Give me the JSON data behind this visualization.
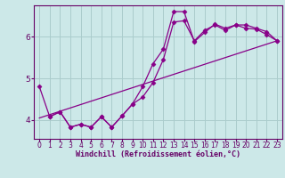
{
  "xlabel": "Windchill (Refroidissement éolien,°C)",
  "bg_color": "#cce8e8",
  "grid_color": "#aacccc",
  "line_color": "#880088",
  "axis_color": "#660066",
  "marker": "D",
  "markersize": 2.5,
  "linewidth": 0.9,
  "xlim": [
    -0.5,
    23.5
  ],
  "ylim": [
    3.55,
    6.75
  ],
  "yticks": [
    4,
    5,
    6
  ],
  "xticks": [
    0,
    1,
    2,
    3,
    4,
    5,
    6,
    7,
    8,
    9,
    10,
    11,
    12,
    13,
    14,
    15,
    16,
    17,
    18,
    19,
    20,
    21,
    22,
    23
  ],
  "series": [
    {
      "x": [
        0,
        1,
        2,
        3,
        4,
        5,
        6,
        7,
        8,
        9,
        10,
        11,
        12,
        13,
        14,
        15,
        16,
        17,
        18,
        19,
        20,
        21,
        22,
        23
      ],
      "y": [
        4.8,
        4.08,
        4.2,
        3.83,
        3.9,
        3.83,
        4.08,
        3.83,
        4.1,
        4.38,
        4.55,
        4.9,
        5.45,
        6.35,
        6.38,
        5.9,
        6.15,
        6.28,
        6.15,
        6.28,
        6.2,
        6.18,
        6.05,
        5.9
      ],
      "no_marker_first": false
    },
    {
      "x": [
        1,
        2,
        3,
        4,
        5,
        6,
        7,
        8,
        9,
        10,
        11,
        12,
        13,
        14,
        15,
        16,
        17,
        18,
        19,
        20,
        21,
        22,
        23
      ],
      "y": [
        4.08,
        4.2,
        3.83,
        3.9,
        3.83,
        4.08,
        3.83,
        4.1,
        4.38,
        4.8,
        5.35,
        5.7,
        6.6,
        6.6,
        5.88,
        6.1,
        6.3,
        6.2,
        6.28,
        6.28,
        6.2,
        6.12,
        5.9
      ]
    },
    {
      "x": [
        0,
        23
      ],
      "y": [
        4.05,
        5.9
      ],
      "no_marker": true
    }
  ]
}
